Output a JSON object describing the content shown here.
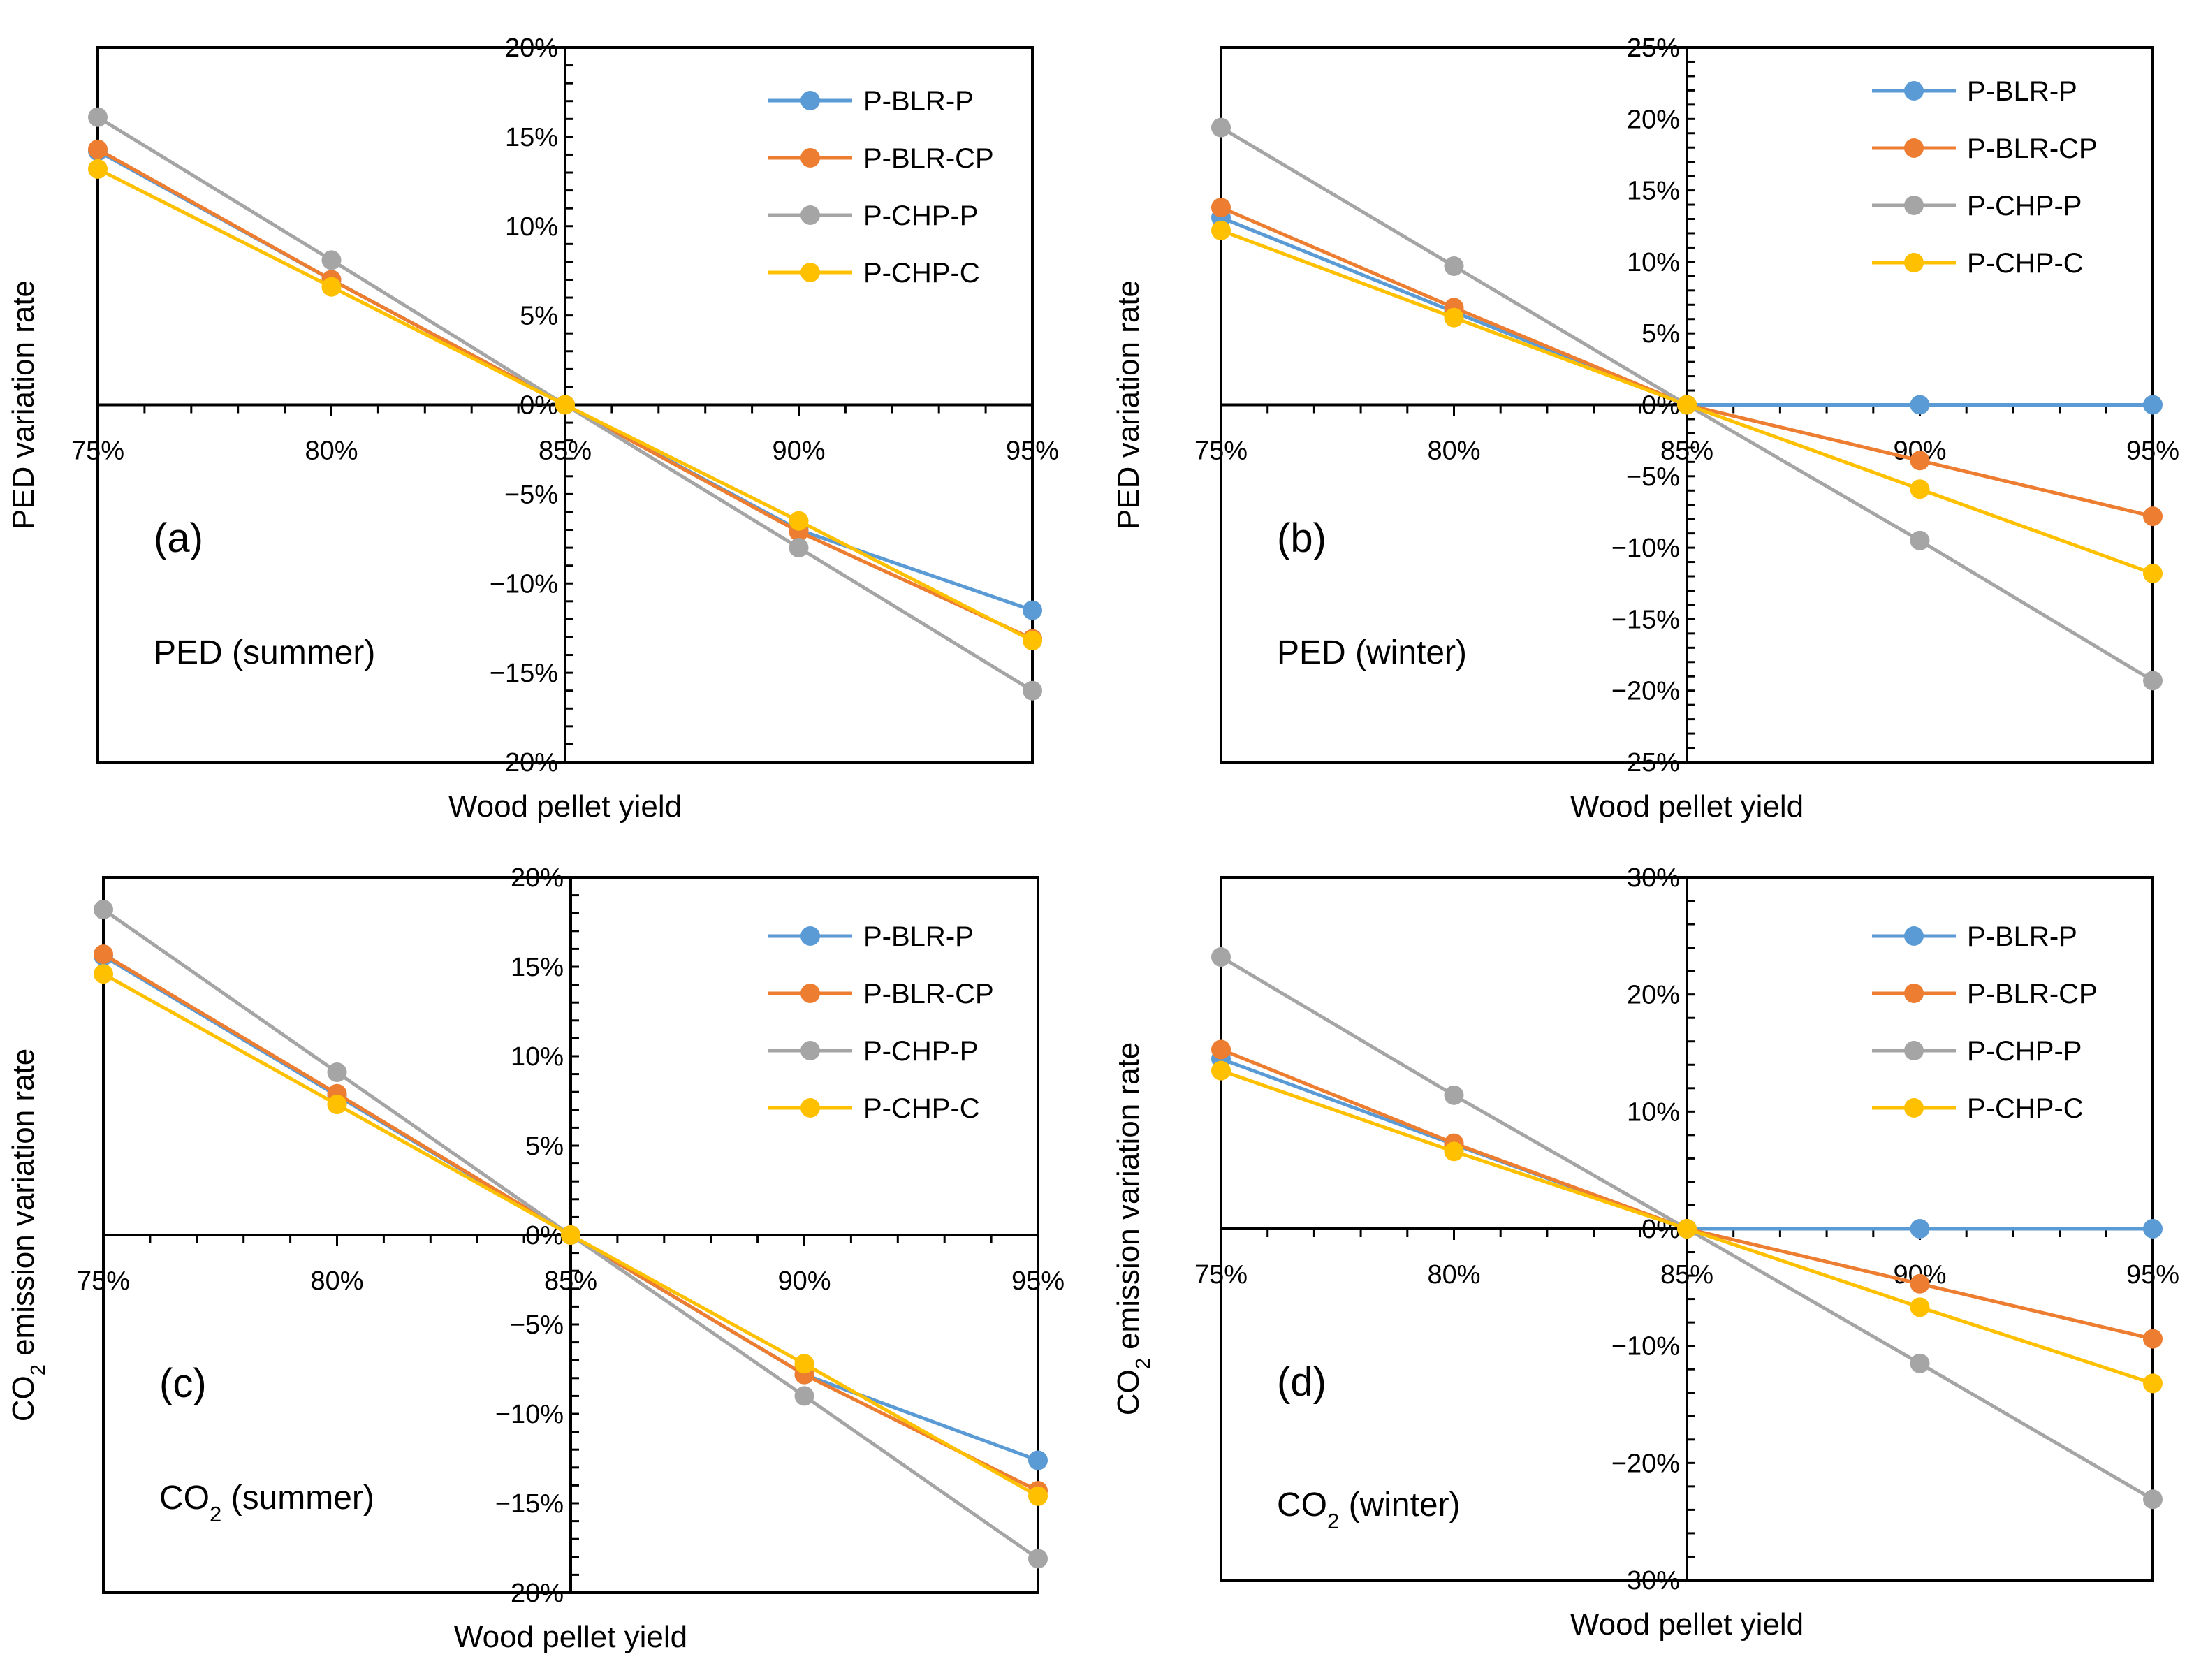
{
  "chart_data": [
    {
      "type": "line",
      "panel_label": "(a)",
      "annotation": "PED (summer)",
      "annotation_parts": [
        {
          "text": "PED (summer)",
          "sub": false
        }
      ],
      "xlabel": "Wood pellet yield",
      "ylabel": "PED variation rate",
      "ylabel_parts": [
        {
          "text": "PED variation rate",
          "sub": false
        }
      ],
      "x": [
        0.75,
        0.8,
        0.85,
        0.9,
        0.95
      ],
      "x_ticks": [
        "75%",
        "80%",
        "85%",
        "90%",
        "95%"
      ],
      "xlim": [
        0.75,
        0.95
      ],
      "ylim": [
        -20,
        20
      ],
      "y_ticks": [
        {
          "v": 20,
          "label": "20%"
        },
        {
          "v": 15,
          "label": "15%"
        },
        {
          "v": 10,
          "label": "10%"
        },
        {
          "v": 5,
          "label": "5%"
        },
        {
          "v": 0,
          "label": "0%"
        },
        {
          "v": -5,
          "label": "−5%"
        },
        {
          "v": -10,
          "label": "−10%"
        },
        {
          "v": -15,
          "label": "−15%"
        },
        {
          "v": -20,
          "label": "−20%"
        }
      ],
      "legend": [
        "P-BLR-P",
        "P-BLR-CP",
        "P-CHP-P",
        "P-CHP-C"
      ],
      "series": [
        {
          "name": "P-BLR-P",
          "color": "#5b9bd5",
          "values": [
            14.2,
            7.0,
            0,
            -7.0,
            -11.5
          ]
        },
        {
          "name": "P-BLR-CP",
          "color": "#ed7d31",
          "values": [
            14.3,
            7.0,
            0,
            -7.1,
            -13.1
          ]
        },
        {
          "name": "P-CHP-P",
          "color": "#a5a5a5",
          "values": [
            16.1,
            8.1,
            0,
            -8.0,
            -16.0
          ]
        },
        {
          "name": "P-CHP-C",
          "color": "#ffc000",
          "values": [
            13.2,
            6.6,
            0,
            -6.5,
            -13.2
          ]
        }
      ]
    },
    {
      "type": "line",
      "panel_label": "(b)",
      "annotation": "PED (winter)",
      "annotation_parts": [
        {
          "text": "PED (winter)",
          "sub": false
        }
      ],
      "xlabel": "Wood pellet yield",
      "ylabel": "PED variation rate",
      "ylabel_parts": [
        {
          "text": "PED variation rate",
          "sub": false
        }
      ],
      "x": [
        0.75,
        0.8,
        0.85,
        0.9,
        0.95
      ],
      "x_ticks": [
        "75%",
        "80%",
        "85%",
        "90%",
        "95%"
      ],
      "xlim": [
        0.75,
        0.95
      ],
      "ylim": [
        -25,
        25
      ],
      "y_ticks": [
        {
          "v": 25,
          "label": "25%"
        },
        {
          "v": 20,
          "label": "20%"
        },
        {
          "v": 15,
          "label": "15%"
        },
        {
          "v": 10,
          "label": "10%"
        },
        {
          "v": 5,
          "label": "5%"
        },
        {
          "v": 0,
          "label": "0%"
        },
        {
          "v": -5,
          "label": "−5%"
        },
        {
          "v": -10,
          "label": "−10%"
        },
        {
          "v": -15,
          "label": "−15%"
        },
        {
          "v": -20,
          "label": "−20%"
        },
        {
          "v": -25,
          "label": "−25%"
        }
      ],
      "legend": [
        "P-BLR-P",
        "P-BLR-CP",
        "P-CHP-P",
        "P-CHP-C"
      ],
      "series": [
        {
          "name": "P-BLR-P",
          "color": "#5b9bd5",
          "values": [
            13.1,
            6.5,
            0,
            0,
            0
          ]
        },
        {
          "name": "P-BLR-CP",
          "color": "#ed7d31",
          "values": [
            13.8,
            6.8,
            0,
            -3.9,
            -7.8
          ]
        },
        {
          "name": "P-CHP-P",
          "color": "#a5a5a5",
          "values": [
            19.4,
            9.7,
            0,
            -9.5,
            -19.3
          ]
        },
        {
          "name": "P-CHP-C",
          "color": "#ffc000",
          "values": [
            12.2,
            6.1,
            0,
            -5.9,
            -11.8
          ]
        }
      ]
    },
    {
      "type": "line",
      "panel_label": "(c)",
      "annotation": "CO2 (summer)",
      "annotation_parts": [
        {
          "text": "CO",
          "sub": false
        },
        {
          "text": "2",
          "sub": true
        },
        {
          "text": " (summer)",
          "sub": false
        }
      ],
      "xlabel": "Wood pellet yield",
      "ylabel": "CO2 emission variation rate",
      "ylabel_parts": [
        {
          "text": "CO",
          "sub": false
        },
        {
          "text": "2",
          "sub": true
        },
        {
          "text": " emission variation rate",
          "sub": false
        }
      ],
      "x": [
        0.75,
        0.8,
        0.85,
        0.9,
        0.95
      ],
      "x_ticks": [
        "75%",
        "80%",
        "85%",
        "90%",
        "95%"
      ],
      "xlim": [
        0.75,
        0.95
      ],
      "ylim": [
        -20,
        20
      ],
      "y_ticks": [
        {
          "v": 20,
          "label": "20%"
        },
        {
          "v": 15,
          "label": "15%"
        },
        {
          "v": 10,
          "label": "10%"
        },
        {
          "v": 5,
          "label": "5%"
        },
        {
          "v": 0,
          "label": "0%"
        },
        {
          "v": -5,
          "label": "−5%"
        },
        {
          "v": -10,
          "label": "−10%"
        },
        {
          "v": -15,
          "label": "−15%"
        },
        {
          "v": -20,
          "label": "−20%"
        }
      ],
      "legend": [
        "P-BLR-P",
        "P-BLR-CP",
        "P-CHP-P",
        "P-CHP-C"
      ],
      "series": [
        {
          "name": "P-BLR-P",
          "color": "#5b9bd5",
          "values": [
            15.6,
            7.8,
            0,
            -7.8,
            -12.6
          ]
        },
        {
          "name": "P-BLR-CP",
          "color": "#ed7d31",
          "values": [
            15.7,
            7.9,
            0,
            -7.8,
            -14.3
          ]
        },
        {
          "name": "P-CHP-P",
          "color": "#a5a5a5",
          "values": [
            18.2,
            9.1,
            0,
            -9.0,
            -18.1
          ]
        },
        {
          "name": "P-CHP-C",
          "color": "#ffc000",
          "values": [
            14.6,
            7.3,
            0,
            -7.2,
            -14.6
          ]
        }
      ]
    },
    {
      "type": "line",
      "panel_label": "(d)",
      "annotation": "CO2 (winter)",
      "annotation_parts": [
        {
          "text": "CO",
          "sub": false
        },
        {
          "text": "2",
          "sub": true
        },
        {
          "text": " (winter)",
          "sub": false
        }
      ],
      "xlabel": "Wood pellet yield",
      "ylabel": "CO2 emission variation rate",
      "ylabel_parts": [
        {
          "text": "CO",
          "sub": false
        },
        {
          "text": "2",
          "sub": true
        },
        {
          "text": " emission variation rate",
          "sub": false
        }
      ],
      "x": [
        0.75,
        0.8,
        0.85,
        0.9,
        0.95
      ],
      "x_ticks": [
        "75%",
        "80%",
        "85%",
        "90%",
        "95%"
      ],
      "xlim": [
        0.75,
        0.95
      ],
      "ylim": [
        -30,
        30
      ],
      "y_ticks": [
        {
          "v": 30,
          "label": "30%"
        },
        {
          "v": 20,
          "label": "20%"
        },
        {
          "v": 10,
          "label": "10%"
        },
        {
          "v": 0,
          "label": "0%"
        },
        {
          "v": -10,
          "label": "−10%"
        },
        {
          "v": -20,
          "label": "−20%"
        },
        {
          "v": -30,
          "label": "−30%"
        }
      ],
      "legend": [
        "P-BLR-P",
        "P-BLR-CP",
        "P-CHP-P",
        "P-CHP-C"
      ],
      "series": [
        {
          "name": "P-BLR-P",
          "color": "#5b9bd5",
          "values": [
            14.5,
            7.2,
            0,
            0,
            0
          ]
        },
        {
          "name": "P-BLR-CP",
          "color": "#ed7d31",
          "values": [
            15.3,
            7.3,
            0,
            -4.7,
            -9.4
          ]
        },
        {
          "name": "P-CHP-P",
          "color": "#a5a5a5",
          "values": [
            23.2,
            11.4,
            0,
            -11.5,
            -23.1
          ]
        },
        {
          "name": "P-CHP-C",
          "color": "#ffc000",
          "values": [
            13.5,
            6.6,
            0,
            -6.7,
            -13.2
          ]
        }
      ]
    }
  ]
}
